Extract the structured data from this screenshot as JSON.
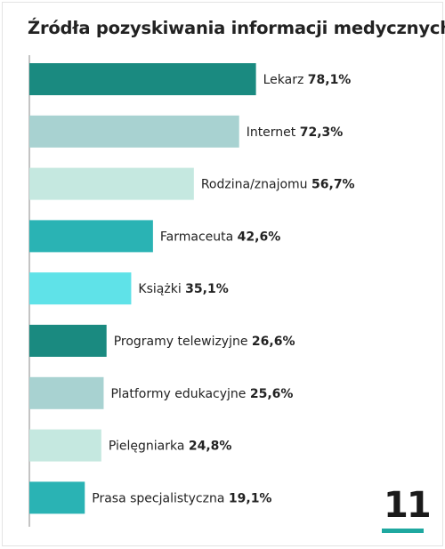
{
  "chart_data": {
    "type": "bar",
    "orientation": "horizontal",
    "title": "Źródła pozyskiwania informacji medycznych",
    "categories": [
      "Lekarz",
      "Internet",
      "Rodzina/znajomu",
      "Farmaceuta",
      "Książki",
      "Programy telewizyjne",
      "Platformy edukacyjne",
      "Pielęgniarka",
      "Prasa specjalistyczna"
    ],
    "values": [
      78.1,
      72.3,
      56.7,
      42.6,
      35.1,
      26.6,
      25.6,
      24.8,
      19.1
    ],
    "value_labels": [
      "78,1%",
      "72,3%",
      "56,7%",
      "42,6%",
      "35,1%",
      "26,6%",
      "25,6%",
      "24,8%",
      "19,1%"
    ],
    "colors": [
      "#1a8a80",
      "#a8d2d1",
      "#c5e8e0",
      "#2ab3b4",
      "#5fe2e8",
      "#1a8a80",
      "#a8d2d1",
      "#c5e8e0",
      "#2ab3b4"
    ],
    "xlim": [
      0,
      100
    ],
    "grid": false,
    "legend": "none"
  },
  "page": {
    "number": "11",
    "accent": "#1fa8a0"
  }
}
